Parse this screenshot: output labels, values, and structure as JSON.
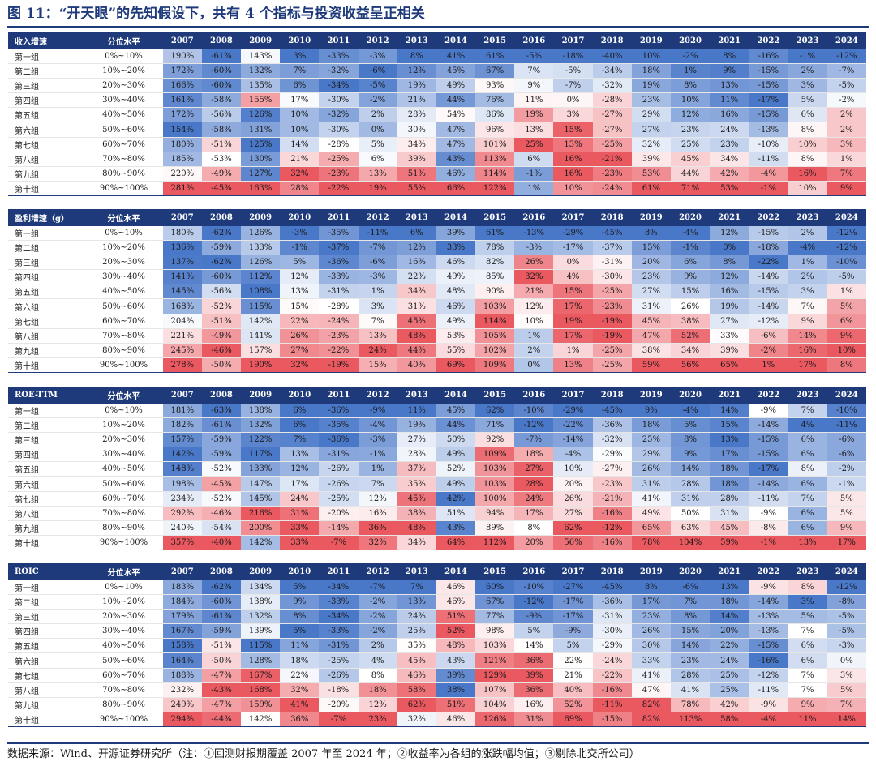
{
  "title": "图 11：“开天眼”的先知假设下，共有 4 个指标与投资收益呈正相关",
  "footer": "数据来源：Wind、开源证券研究所（注：①回测财报期覆盖 2007 年至 2024 年；②收益率为各组的涨跌幅均值；③剔除北交所公司）",
  "colors": {
    "header": "#1e3a7a",
    "positive": "#e84a52",
    "negative": "#3a6cc4"
  },
  "years": [
    "2007",
    "2008",
    "2009",
    "2010",
    "2011",
    "2012",
    "2013",
    "2014",
    "2015",
    "2016",
    "2017",
    "2018",
    "2019",
    "2020",
    "2021",
    "2022",
    "2023",
    "2024"
  ],
  "group_labels": [
    "第一组",
    "第二组",
    "第三组",
    "第四组",
    "第五组",
    "第六组",
    "第七组",
    "第八组",
    "第九组",
    "第十组"
  ],
  "quantile_labels": [
    "0%~10%",
    "10%~20%",
    "20%~30%",
    "30%~40%",
    "40%~50%",
    "50%~60%",
    "60%~70%",
    "70%~80%",
    "80%~90%",
    "90%~100%"
  ],
  "quantile_header": "分位水平",
  "panels": [
    {
      "name": "收入增速",
      "rows": [
        [
          "190%",
          "-61%",
          "143%",
          "3%",
          "-33%",
          "-3%",
          "8%",
          "41%",
          "61%",
          "-5%",
          "-18%",
          "-40%",
          "10%",
          "-2%",
          "8%",
          "-16%",
          "-1%",
          "-12%"
        ],
        [
          "172%",
          "-60%",
          "132%",
          "7%",
          "-32%",
          "-6%",
          "12%",
          "45%",
          "67%",
          "7%",
          "-5%",
          "-34%",
          "18%",
          "1%",
          "9%",
          "-15%",
          "2%",
          "-7%"
        ],
        [
          "166%",
          "-60%",
          "135%",
          "6%",
          "-34%",
          "-5%",
          "19%",
          "49%",
          "93%",
          "9%",
          "-7%",
          "-32%",
          "19%",
          "8%",
          "13%",
          "-15%",
          "3%",
          "-5%"
        ],
        [
          "161%",
          "-58%",
          "155%",
          "17%",
          "-30%",
          "-2%",
          "21%",
          "44%",
          "76%",
          "11%",
          "0%",
          "-28%",
          "23%",
          "10%",
          "11%",
          "-17%",
          "5%",
          "-2%"
        ],
        [
          "172%",
          "-56%",
          "126%",
          "10%",
          "-32%",
          "2%",
          "28%",
          "54%",
          "86%",
          "19%",
          "3%",
          "-27%",
          "29%",
          "12%",
          "16%",
          "-15%",
          "6%",
          "2%"
        ],
        [
          "154%",
          "-58%",
          "131%",
          "10%",
          "-30%",
          "0%",
          "30%",
          "47%",
          "96%",
          "13%",
          "15%",
          "-27%",
          "27%",
          "23%",
          "24%",
          "-13%",
          "8%",
          "2%"
        ],
        [
          "180%",
          "-51%",
          "125%",
          "14%",
          "-28%",
          "5%",
          "34%",
          "47%",
          "101%",
          "25%",
          "13%",
          "-25%",
          "32%",
          "25%",
          "23%",
          "-10%",
          "10%",
          "3%"
        ],
        [
          "185%",
          "-53%",
          "130%",
          "21%",
          "-25%",
          "6%",
          "39%",
          "43%",
          "113%",
          "6%",
          "16%",
          "-21%",
          "39%",
          "45%",
          "34%",
          "-11%",
          "8%",
          "1%"
        ],
        [
          "220%",
          "-49%",
          "127%",
          "32%",
          "-23%",
          "13%",
          "51%",
          "46%",
          "114%",
          "-1%",
          "16%",
          "-23%",
          "53%",
          "44%",
          "42%",
          "-4%",
          "16%",
          "7%"
        ],
        [
          "281%",
          "-45%",
          "163%",
          "28%",
          "-22%",
          "19%",
          "55%",
          "66%",
          "122%",
          "1%",
          "10%",
          "-24%",
          "61%",
          "71%",
          "53%",
          "-1%",
          "10%",
          "9%"
        ]
      ]
    },
    {
      "name": "盈利增速（g）",
      "rows": [
        [
          "180%",
          "-62%",
          "126%",
          "-3%",
          "-35%",
          "-11%",
          "6%",
          "39%",
          "61%",
          "-13%",
          "-29%",
          "-45%",
          "8%",
          "-4%",
          "12%",
          "-15%",
          "2%",
          "-12%"
        ],
        [
          "136%",
          "-59%",
          "133%",
          "-1%",
          "-37%",
          "-7%",
          "12%",
          "33%",
          "78%",
          "-3%",
          "-17%",
          "-37%",
          "15%",
          "-1%",
          "0%",
          "-18%",
          "-4%",
          "-12%"
        ],
        [
          "137%",
          "-62%",
          "126%",
          "5%",
          "-36%",
          "-6%",
          "16%",
          "46%",
          "82%",
          "26%",
          "0%",
          "-31%",
          "20%",
          "6%",
          "8%",
          "-22%",
          "1%",
          "-10%"
        ],
        [
          "141%",
          "-60%",
          "112%",
          "12%",
          "-33%",
          "-3%",
          "22%",
          "49%",
          "85%",
          "32%",
          "4%",
          "-30%",
          "23%",
          "9%",
          "12%",
          "-14%",
          "2%",
          "-5%"
        ],
        [
          "145%",
          "-56%",
          "108%",
          "13%",
          "-31%",
          "1%",
          "34%",
          "48%",
          "90%",
          "21%",
          "15%",
          "-25%",
          "27%",
          "15%",
          "16%",
          "-15%",
          "3%",
          "1%"
        ],
        [
          "168%",
          "-52%",
          "115%",
          "15%",
          "-28%",
          "3%",
          "31%",
          "46%",
          "103%",
          "12%",
          "17%",
          "-23%",
          "31%",
          "26%",
          "19%",
          "-14%",
          "7%",
          "5%"
        ],
        [
          "204%",
          "-51%",
          "142%",
          "22%",
          "-24%",
          "7%",
          "45%",
          "49%",
          "114%",
          "10%",
          "19%",
          "-19%",
          "45%",
          "38%",
          "27%",
          "-12%",
          "9%",
          "6%"
        ],
        [
          "221%",
          "-49%",
          "141%",
          "26%",
          "-23%",
          "13%",
          "48%",
          "53%",
          "105%",
          "1%",
          "17%",
          "-19%",
          "47%",
          "52%",
          "33%",
          "-6%",
          "14%",
          "9%"
        ],
        [
          "245%",
          "-46%",
          "157%",
          "27%",
          "-22%",
          "24%",
          "44%",
          "55%",
          "102%",
          "2%",
          "1%",
          "-25%",
          "38%",
          "34%",
          "39%",
          "-2%",
          "16%",
          "10%"
        ],
        [
          "278%",
          "-50%",
          "190%",
          "32%",
          "-19%",
          "15%",
          "40%",
          "69%",
          "109%",
          "0%",
          "13%",
          "-25%",
          "59%",
          "56%",
          "65%",
          "1%",
          "17%",
          "8%"
        ]
      ]
    },
    {
      "name": "ROE-TTM",
      "rows": [
        [
          "181%",
          "-63%",
          "138%",
          "6%",
          "-36%",
          "-9%",
          "11%",
          "45%",
          "62%",
          "-10%",
          "-29%",
          "-45%",
          "9%",
          "-4%",
          "14%",
          "-9%",
          "7%",
          "-10%"
        ],
        [
          "182%",
          "-61%",
          "132%",
          "6%",
          "-35%",
          "-4%",
          "19%",
          "44%",
          "71%",
          "-12%",
          "-22%",
          "-36%",
          "18%",
          "5%",
          "15%",
          "-14%",
          "4%",
          "-11%"
        ],
        [
          "157%",
          "-59%",
          "122%",
          "7%",
          "-36%",
          "-3%",
          "27%",
          "50%",
          "92%",
          "-7%",
          "-14%",
          "-32%",
          "25%",
          "8%",
          "13%",
          "-15%",
          "6%",
          "-6%"
        ],
        [
          "142%",
          "-59%",
          "117%",
          "13%",
          "-31%",
          "-1%",
          "28%",
          "49%",
          "109%",
          "18%",
          "-4%",
          "-29%",
          "29%",
          "9%",
          "17%",
          "-15%",
          "6%",
          "-6%"
        ],
        [
          "148%",
          "-52%",
          "133%",
          "12%",
          "-26%",
          "1%",
          "37%",
          "52%",
          "103%",
          "27%",
          "10%",
          "-27%",
          "26%",
          "14%",
          "18%",
          "-17%",
          "8%",
          "-2%"
        ],
        [
          "198%",
          "-45%",
          "147%",
          "17%",
          "-26%",
          "7%",
          "35%",
          "49%",
          "103%",
          "28%",
          "20%",
          "-23%",
          "31%",
          "28%",
          "18%",
          "-14%",
          "6%",
          "-1%"
        ],
        [
          "234%",
          "-52%",
          "145%",
          "24%",
          "-25%",
          "12%",
          "45%",
          "42%",
          "100%",
          "24%",
          "26%",
          "-21%",
          "41%",
          "31%",
          "28%",
          "-11%",
          "7%",
          "5%"
        ],
        [
          "292%",
          "-46%",
          "216%",
          "31%",
          "-20%",
          "16%",
          "38%",
          "51%",
          "94%",
          "17%",
          "27%",
          "-16%",
          "49%",
          "50%",
          "31%",
          "-9%",
          "6%",
          "5%"
        ],
        [
          "240%",
          "-54%",
          "200%",
          "33%",
          "-14%",
          "36%",
          "48%",
          "43%",
          "89%",
          "8%",
          "62%",
          "-12%",
          "65%",
          "63%",
          "45%",
          "-8%",
          "6%",
          "9%"
        ],
        [
          "357%",
          "-40%",
          "142%",
          "33%",
          "-7%",
          "32%",
          "34%",
          "64%",
          "112%",
          "20%",
          "56%",
          "-16%",
          "78%",
          "104%",
          "59%",
          "-1%",
          "13%",
          "17%"
        ]
      ]
    },
    {
      "name": "ROIC",
      "rows": [
        [
          "183%",
          "-62%",
          "134%",
          "5%",
          "-34%",
          "-7%",
          "7%",
          "46%",
          "60%",
          "-10%",
          "-27%",
          "-45%",
          "8%",
          "-6%",
          "13%",
          "-9%",
          "8%",
          "-12%"
        ],
        [
          "184%",
          "-60%",
          "138%",
          "9%",
          "-33%",
          "-2%",
          "13%",
          "46%",
          "67%",
          "-12%",
          "-17%",
          "-36%",
          "17%",
          "7%",
          "18%",
          "-14%",
          "3%",
          "-8%"
        ],
        [
          "179%",
          "-61%",
          "132%",
          "8%",
          "-34%",
          "-2%",
          "24%",
          "51%",
          "77%",
          "-9%",
          "-17%",
          "-31%",
          "23%",
          "8%",
          "14%",
          "-13%",
          "5%",
          "-5%"
        ],
        [
          "167%",
          "-59%",
          "139%",
          "5%",
          "-33%",
          "-2%",
          "25%",
          "52%",
          "98%",
          "5%",
          "-9%",
          "-30%",
          "26%",
          "15%",
          "20%",
          "-13%",
          "7%",
          "-5%"
        ],
        [
          "158%",
          "-51%",
          "115%",
          "11%",
          "-31%",
          "2%",
          "35%",
          "48%",
          "103%",
          "14%",
          "5%",
          "-29%",
          "30%",
          "14%",
          "22%",
          "-15%",
          "6%",
          "-3%"
        ],
        [
          "164%",
          "-50%",
          "128%",
          "18%",
          "-25%",
          "4%",
          "45%",
          "43%",
          "121%",
          "36%",
          "22%",
          "-24%",
          "33%",
          "23%",
          "24%",
          "-16%",
          "6%",
          "0%"
        ],
        [
          "188%",
          "-47%",
          "167%",
          "22%",
          "-26%",
          "8%",
          "46%",
          "39%",
          "129%",
          "39%",
          "21%",
          "-22%",
          "41%",
          "28%",
          "25%",
          "-12%",
          "7%",
          "3%"
        ],
        [
          "232%",
          "-43%",
          "168%",
          "32%",
          "-18%",
          "18%",
          "58%",
          "38%",
          "107%",
          "36%",
          "40%",
          "-16%",
          "47%",
          "41%",
          "25%",
          "-11%",
          "7%",
          "5%"
        ],
        [
          "249%",
          "-47%",
          "159%",
          "41%",
          "-20%",
          "12%",
          "62%",
          "51%",
          "104%",
          "16%",
          "52%",
          "-11%",
          "82%",
          "78%",
          "42%",
          "-9%",
          "9%",
          "7%"
        ],
        [
          "294%",
          "-44%",
          "142%",
          "36%",
          "-7%",
          "23%",
          "32%",
          "46%",
          "126%",
          "31%",
          "69%",
          "-15%",
          "82%",
          "113%",
          "58%",
          "-4%",
          "11%",
          "14%"
        ]
      ]
    }
  ]
}
